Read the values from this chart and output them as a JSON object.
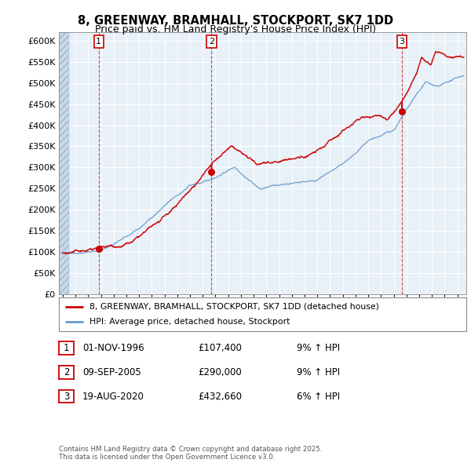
{
  "title": "8, GREENWAY, BRAMHALL, STOCKPORT, SK7 1DD",
  "subtitle": "Price paid vs. HM Land Registry's House Price Index (HPI)",
  "ylim": [
    0,
    620000
  ],
  "yticks": [
    0,
    50000,
    100000,
    150000,
    200000,
    250000,
    300000,
    350000,
    400000,
    450000,
    500000,
    550000,
    600000
  ],
  "xlim_start": 1993.7,
  "xlim_end": 2025.7,
  "bg_color": "#ddeeff",
  "red_color": "#cc0000",
  "blue_color": "#6699cc",
  "sale_year_floats": [
    1996.833,
    2005.692,
    2020.633
  ],
  "sale_prices": [
    107400,
    290000,
    432660
  ],
  "sale_labels": [
    "1",
    "2",
    "3"
  ],
  "legend_line1": "8, GREENWAY, BRAMHALL, STOCKPORT, SK7 1DD (detached house)",
  "legend_line2": "HPI: Average price, detached house, Stockport",
  "table_data": [
    [
      "1",
      "01-NOV-1996",
      "£107,400",
      "9% ↑ HPI"
    ],
    [
      "2",
      "09-SEP-2005",
      "£290,000",
      "9% ↑ HPI"
    ],
    [
      "3",
      "19-AUG-2020",
      "£432,660",
      "6% ↑ HPI"
    ]
  ],
  "footer": "Contains HM Land Registry data © Crown copyright and database right 2025.\nThis data is licensed under the Open Government Licence v3.0.",
  "hatch_end": 1994.5
}
